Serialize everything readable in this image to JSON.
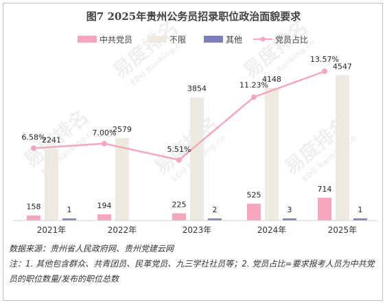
{
  "chart_data": {
    "type": "bar",
    "title": "图7 2025年贵州公务员招录职位政治面貌要求",
    "categories": [
      "2021年",
      "2022年",
      "2023年",
      "2024年",
      "2025年"
    ],
    "series": [
      {
        "name": "中共党员",
        "type": "bar",
        "color": "#f4a7bc",
        "values": [
          158,
          194,
          225,
          525,
          714
        ]
      },
      {
        "name": "不限",
        "type": "bar",
        "color": "#eeeae2",
        "values": [
          2241,
          2579,
          3854,
          4148,
          4547
        ]
      },
      {
        "name": "其他",
        "type": "bar",
        "color": "#7c7fb8",
        "values": [
          1,
          null,
          2,
          3,
          1
        ]
      },
      {
        "name": "党员占比",
        "type": "line",
        "color": "#f4a7bc",
        "values": [
          6.58,
          7.0,
          5.51,
          11.23,
          13.57
        ],
        "labels": [
          "6.58%",
          "7.00%",
          "5.51%",
          "11.23%",
          "13.57%"
        ]
      }
    ],
    "ylim": [
      0,
      5500
    ],
    "y2lim": [
      0,
      16
    ],
    "legend": "top",
    "grid": false
  },
  "watermark": {
    "cn": "易度排名",
    "en": "EDU Ranking.cn"
  },
  "notes": {
    "source": "数据来源：贵州省人民政府网、贵州党建云网",
    "note": "注：1. 其他包含群众、共青团员、民革党员、九三学社社员等；2. 党员占比=要求报考人员为中共党员的职位数量/发布的职位总数"
  }
}
